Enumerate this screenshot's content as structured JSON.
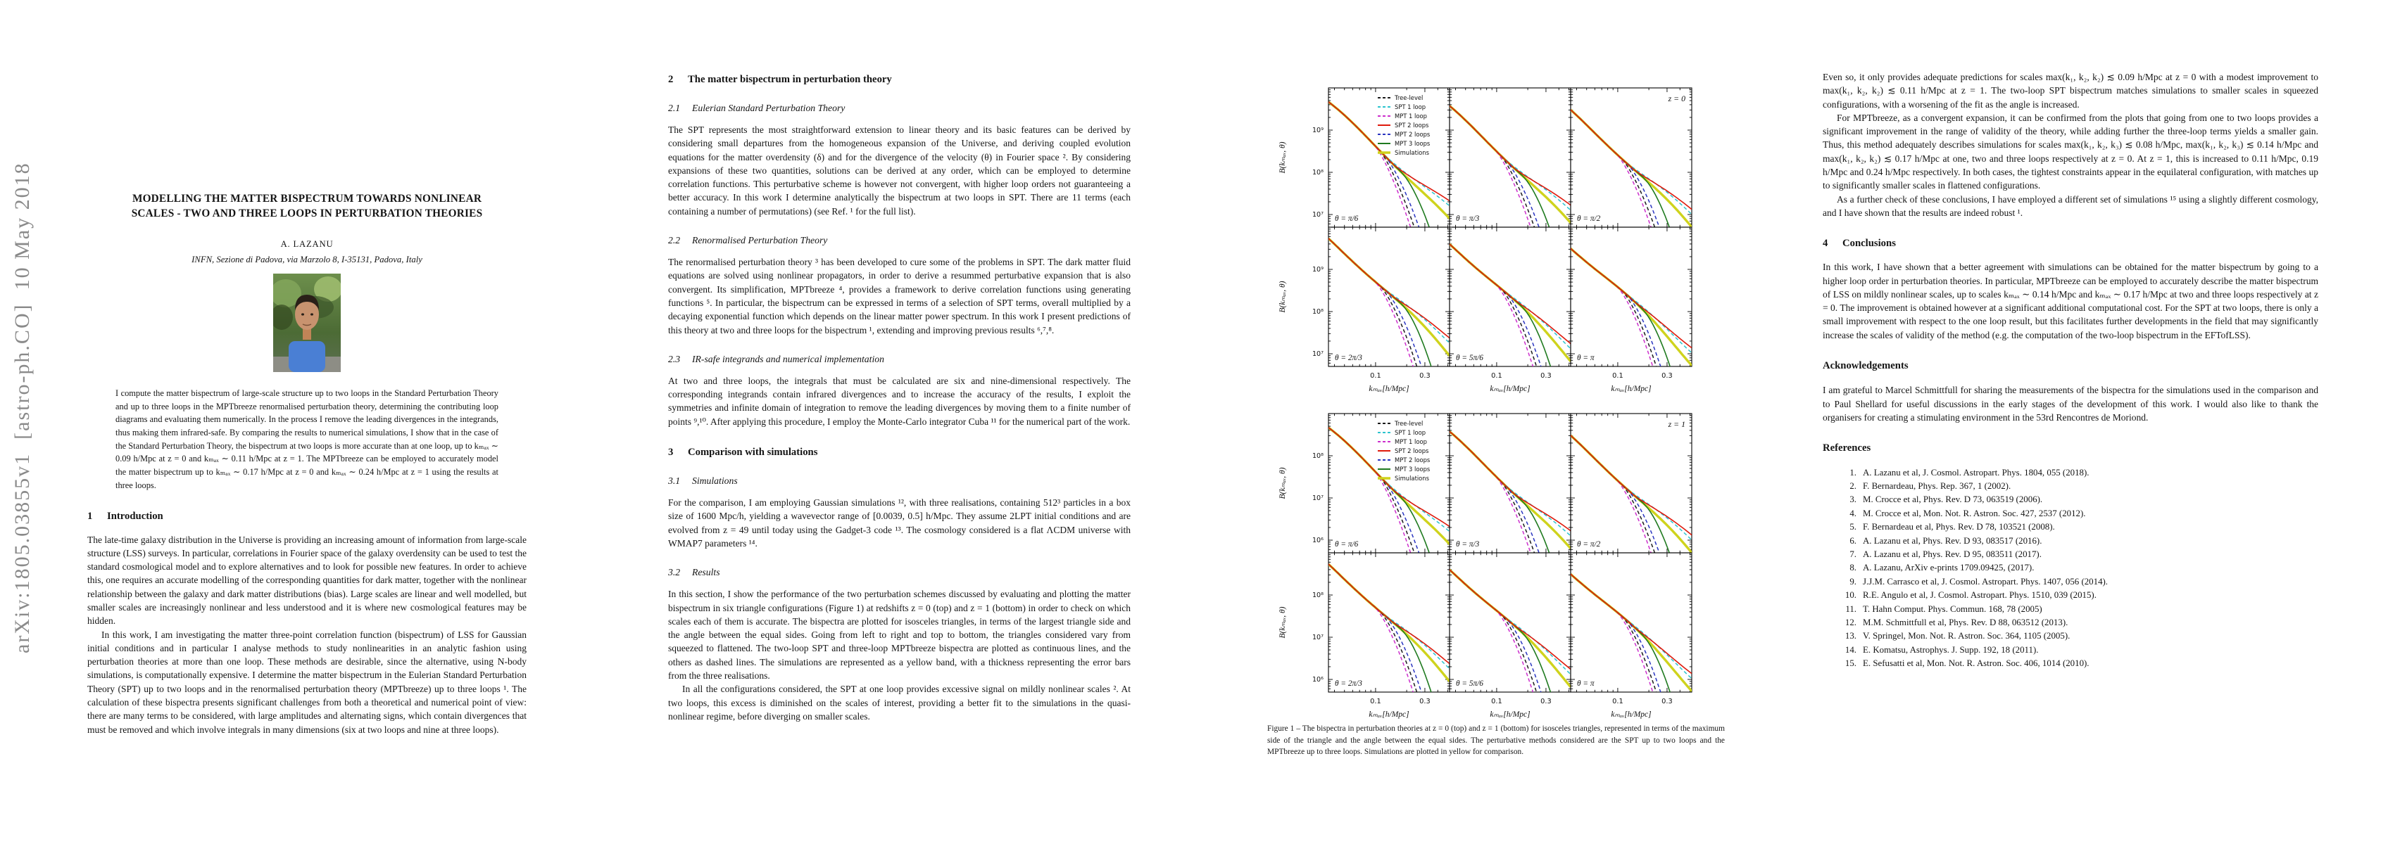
{
  "sidebar_text": "arXiv:1805.03855v1  [astro-ph.CO]  10 May 2018",
  "col1": {
    "title_lines": [
      "MODELLING THE MATTER BISPECTRUM TOWARDS NONLINEAR",
      "SCALES - TWO AND THREE LOOPS IN PERTURBATION THEORIES"
    ],
    "author": "A. LAZANU",
    "affiliation": "INFN, Sezione di Padova, via Marzolo 8, I-35131, Padova, Italy",
    "abstract": "I compute the matter bispectrum of large-scale structure up to two loops in the Standard Perturbation Theory and up to three loops in the MPTbreeze renormalised perturbation theory, determining the contributing loop diagrams and evaluating them numerically. In the process I remove the leading divergences in the integrands, thus making them infrared-safe. By comparing the results to numerical simulations, I show that in the case of the Standard Perturbation Theory, the bispectrum at two loops is more accurate than at one loop, up to kₘₐₓ ∼ 0.09 h/Mpc at z = 0 and kₘₐₓ ∼ 0.11 h/Mpc at z = 1. The MPTbreeze can be employed to accurately model the matter bispectrum up to kₘₐₓ ∼ 0.17 h/Mpc at z = 0 and kₘₐₓ ∼ 0.24 h/Mpc at z = 1 using the results at three loops.",
    "intro_heading": {
      "num": "1",
      "title": "Introduction"
    },
    "intro_p1": "The late-time galaxy distribution in the Universe is providing an increasing amount of information from large-scale structure (LSS) surveys. In particular, correlations in Fourier space of the galaxy overdensity can be used to test the standard cosmological model and to explore alternatives and to look for possible new features. In order to achieve this, one requires an accurate modelling of the corresponding quantities for dark matter, together with the nonlinear relationship between the galaxy and dark matter distributions (bias). Large scales are linear and well modelled, but smaller scales are increasingly nonlinear and less understood and it is where new cosmological features may be hidden.",
    "intro_p2": "In this work, I am investigating the matter three-point correlation function (bispectrum) of LSS for Gaussian initial conditions and in particular I analyse methods to study nonlinearities in an analytic fashion using perturbation theories at more than one loop. These methods are desirable, since the alternative, using N-body simulations, is computationally expensive. I determine the matter bispectrum in the Eulerian Standard Perturbation Theory (SPT) up to two loops and in the renormalised perturbation theory (MPTbreeze) up to three loops ¹. The calculation of these bispectra presents significant challenges from both a theoretical and numerical point of view: there are many terms to be considered, with large amplitudes and alternating signs, which contain divergences that must be removed and which involve integrals in many dimensions (six at two loops and nine at three loops)."
  },
  "col2": {
    "sec2": {
      "num": "2",
      "title": "The matter bispectrum in perturbation theory"
    },
    "sec21": {
      "num": "2.1",
      "title": "Eulerian Standard Perturbation Theory"
    },
    "s21_text": "The SPT represents the most straightforward extension to linear theory and its basic features can be derived by considering small departures from the homogeneous expansion of the Universe, and deriving coupled evolution equations for the matter overdensity (δ) and for the divergence of the velocity (θ) in Fourier space ². By considering expansions of these two quantities, solutions can be derived at any order, which can be employed to determine correlation functions. This perturbative scheme is however not convergent, with higher loop orders not guaranteeing a better accuracy. In this work I determine analytically the bispectrum at two loops in SPT. There are 11 terms (each containing a number of permutations) (see Ref. ¹ for the full list).",
    "sec22": {
      "num": "2.2",
      "title": "Renormalised Perturbation Theory"
    },
    "s22_text": "The renormalised perturbation theory ³ has been developed to cure some of the problems in SPT. The dark matter fluid equations are solved using nonlinear propagators, in order to derive a resummed perturbative expansion that is also convergent. Its simplification, MPTbreeze ⁴, provides a framework to derive correlation functions using generating functions ⁵. In particular, the bispectrum can be expressed in terms of a selection of SPT terms, overall multiplied by a decaying exponential function which depends on the linear matter power spectrum. In this work I present predictions of this theory at two and three loops for the bispectrum ¹, extending and improving previous results ⁶,⁷,⁸.",
    "sec23": {
      "num": "2.3",
      "title": "IR-safe integrands and numerical implementation"
    },
    "s23_text": "At two and three loops, the integrals that must be calculated are six and nine-dimensional respectively. The corresponding integrands contain infrared divergences and to increase the accuracy of the results, I exploit the symmetries and infinite domain of integration to remove the leading divergences by moving them to a finite number of points ⁹,¹⁰. After applying this procedure, I employ the Monte-Carlo integrator Cuba ¹¹ for the numerical part of the work.",
    "sec3": {
      "num": "3",
      "title": "Comparison with simulations"
    },
    "sec31": {
      "num": "3.1",
      "title": "Simulations"
    },
    "s31_text": "For the comparison, I am employing Gaussian simulations ¹², with three realisations, containing 512³ particles in a box size of 1600 Mpc/h, yielding a wavevector range of [0.0039, 0.5] h/Mpc. They assume 2LPT initial conditions and are evolved from z = 49 until today using the Gadget-3 code ¹³. The cosmology considered is a flat ΛCDM universe with WMAP7 parameters ¹⁴.",
    "sec32": {
      "num": "3.2",
      "title": "Results"
    },
    "s32_p1": "In this section, I show the performance of the two perturbation schemes discussed by evaluating and plotting the matter bispectrum in six triangle configurations (Figure 1) at redshifts z = 0 (top) and z = 1 (bottom) in order to check on which scales each of them is accurate. The bispectra are plotted for isosceles triangles, in terms of the largest triangle side and the angle between the equal sides. Going from left to right and top to bottom, the triangles considered vary from squeezed to flattened. The two-loop SPT and three-loop MPTbreeze bispectra are plotted as continuous lines, and the others as dashed lines. The simulations are represented as a yellow band, with a thickness representing the error bars from the three realisations.",
    "s32_p2": "In all the configurations considered, the SPT at one loop provides excessive signal on mildly nonlinear scales ². At two loops, this excess is diminished on the scales of interest, providing a better fit to the simulations in the quasi-nonlinear regime, before diverging on smaller scales."
  },
  "col3": {
    "p1": "Even so, it only provides adequate predictions for scales max(k₁, k₂, k₂) ≲ 0.09 h/Mpc at z = 0 with a modest improvement to max(k₁, k₂, k₂) ≲ 0.11 h/Mpc at z = 1. The two-loop SPT bispectrum matches simulations to smaller scales in squeezed configurations, with a worsening of the fit as the angle is increased.",
    "p2": "For MPTbreeze, as a convergent expansion, it can be confirmed from the plots that going from one to two loops provides a significant improvement in the range of validity of the theory, while adding further the three-loop terms yields a smaller gain. Thus, this method adequately describes simulations for scales max(k₁, k₂, k₃) ≲ 0.08 h/Mpc, max(k₁, k₂, k₃) ≲ 0.14 h/Mpc and max(k₁, k₂, k₂) ≲ 0.17 h/Mpc at one, two and three loops respectively at z = 0. At z = 1, this is increased to 0.11 h/Mpc, 0.19 h/Mpc and 0.24 h/Mpc respectively. In both cases, the tightest constraints appear in the equilateral configuration, with matches up to significantly smaller scales in flattened configurations.",
    "p3": "As a further check of these conclusions, I have employed a different set of simulations ¹⁵ using a slightly different cosmology, and I have shown that the results are indeed robust ¹.",
    "sec4": {
      "num": "4",
      "title": "Conclusions"
    },
    "conclusions": "In this work, I have shown that a better agreement with simulations can be obtained for the matter bispectrum by going to a higher loop order in perturbation theories. In particular, MPTbreeze can be employed to accurately describe the matter bispectrum of LSS on mildly nonlinear scales, up to scales kₘₐₓ ∼ 0.14 h/Mpc and kₘₐₓ ∼ 0.17 h/Mpc at two and three loops respectively at z = 0. The improvement is obtained however at a significant additional computational cost. For the SPT at two loops, there is only a small improvement with respect to the one loop result, but this facilitates further developments in the field that may significantly increase the scales of validity of the method (e.g. the computation of the two-loop bispectrum in the EFTofLSS).",
    "ack_heading": "Acknowledgements",
    "ack_text": "I am grateful to Marcel Schmittfull for sharing the measurements of the bispectra for the simulations used in the comparison and to Paul Shellard for useful discussions in the early stages of the development of this work. I would also like to thank the organisers for creating a stimulating environment in the 53rd Rencontres de Moriond.",
    "ref_heading": "References",
    "references": [
      {
        "n": "1.",
        "t": "A. Lazanu et al, J. Cosmol. Astropart. Phys. 1804, 055 (2018)."
      },
      {
        "n": "2.",
        "t": "F. Bernardeau, Phys. Rep. 367, 1 (2002)."
      },
      {
        "n": "3.",
        "t": "M. Crocce et al, Phys. Rev. D 73, 063519 (2006)."
      },
      {
        "n": "4.",
        "t": "M. Crocce et al, Mon. Not. R. Astron. Soc. 427, 2537 (2012)."
      },
      {
        "n": "5.",
        "t": "F. Bernardeau et al, Phys. Rev. D 78, 103521 (2008)."
      },
      {
        "n": "6.",
        "t": "A. Lazanu et al, Phys. Rev. D 93, 083517 (2016)."
      },
      {
        "n": "7.",
        "t": "A. Lazanu et al, Phys. Rev. D 95, 083511 (2017)."
      },
      {
        "n": "8.",
        "t": "A. Lazanu, ArXiv e-prints 1709.09425, (2017)."
      },
      {
        "n": "9.",
        "t": "J.J.M. Carrasco et al, J. Cosmol. Astropart. Phys. 1407, 056 (2014)."
      },
      {
        "n": "10.",
        "t": "R.E. Angulo et al, J. Cosmol. Astropart. Phys. 1510, 039 (2015)."
      },
      {
        "n": "11.",
        "t": "T. Hahn Comput. Phys. Commun. 168, 78 (2005)"
      },
      {
        "n": "12.",
        "t": "M.M. Schmittfull et al, Phys. Rev. D 88, 063512 (2013)."
      },
      {
        "n": "13.",
        "t": "V. Springel, Mon. Not. R. Astron. Soc. 364, 1105 (2005)."
      },
      {
        "n": "14.",
        "t": "E. Komatsu, Astrophys. J. Supp. 192, 18 (2011)."
      },
      {
        "n": "15.",
        "t": "E. Sefusatti et al, Mon. Not. R. Astron. Soc. 406, 1014 (2010)."
      }
    ]
  },
  "figure": {
    "caption": "Figure 1 – The bispectra in perturbation theories at z = 0 (top) and z = 1 (bottom) for isosceles triangles, represented in terms of the maximum side of the triangle and the angle between the equal sides. The perturbative methods considered are the SPT up to two loops and the MPTbreeze up to three loops. Simulations are plotted in yellow for comparison.",
    "chart_data": {
      "type": "line",
      "x_axis": {
        "label": "kₘₐₓ[h/Mpc]",
        "scale": "log",
        "min": 0.035,
        "max": 0.52,
        "major_ticks": [
          0.1,
          0.3
        ],
        "minor_ticks": [
          0.04,
          0.05,
          0.06,
          0.07,
          0.08,
          0.09,
          0.2,
          0.4,
          0.5
        ],
        "tick_labels": [
          "0.1",
          "0.3"
        ]
      },
      "ylabel": "B(kₘₐₓ, θ)",
      "groups": [
        {
          "z_label": "z = 0",
          "y_exp_max": 10.0,
          "y_exp_span": 3.3,
          "start_exp": 9.62,
          "ytick_exps": [
            9,
            8,
            7
          ],
          "ytick_labels": [
            "10⁹",
            "10⁸",
            "10⁷"
          ],
          "panels": [
            {
              "theta": "θ = π/6"
            },
            {
              "theta": "θ = π/3"
            },
            {
              "theta": "θ = π/2"
            },
            {
              "theta": "θ = 2π/3"
            },
            {
              "theta": "θ = 5π/6"
            },
            {
              "theta": "θ = π"
            }
          ]
        },
        {
          "z_label": "z = 1",
          "y_exp_max": 9.0,
          "y_exp_span": 3.3,
          "start_exp": 8.62,
          "ytick_exps": [
            8,
            7,
            6
          ],
          "ytick_labels": [
            "10⁸",
            "10⁷",
            "10⁶"
          ],
          "panels": [
            {
              "theta": "θ = π/6"
            },
            {
              "theta": "θ = π/3"
            },
            {
              "theta": "θ = π/2"
            },
            {
              "theta": "θ = 2π/3"
            },
            {
              "theta": "θ = 5π/6"
            },
            {
              "theta": "θ = π"
            }
          ]
        }
      ],
      "series": [
        {
          "name": "Tree-level",
          "color": "#1c1c1c",
          "dash": "5 3.5",
          "width": 1.5,
          "t0": 0.42,
          "drop": 7.4,
          "p": 1.6
        },
        {
          "name": "SPT 1 loop",
          "color": "#2cc4ce",
          "dash": "5 3.5",
          "width": 1.5,
          "lt0": 0.42,
          "lift": 0.3
        },
        {
          "name": "MPT 1 loop",
          "color": "#cd2fcd",
          "dash": "5 3.5",
          "width": 1.5,
          "t0": 0.38,
          "drop": 7.6,
          "p": 1.6
        },
        {
          "name": "SPT 2 loops",
          "color": "#df1a0c",
          "dash": null,
          "width": 1.6,
          "lt0": 0.52,
          "lift": 0.42
        },
        {
          "name": "MPT 2 loops",
          "color": "#2a35c0",
          "dash": "5 3.5",
          "width": 1.5,
          "t0": 0.46,
          "drop": 7.6,
          "p": 1.7
        },
        {
          "name": "MPT 3 loops",
          "color": "#1f7a1f",
          "dash": null,
          "width": 1.6,
          "t0": 0.6,
          "drop": 9.5,
          "p": 1.8
        },
        {
          "name": "Simulations",
          "color": "#cfd31d",
          "dash": null,
          "width": 3.4
        }
      ],
      "panel_offsets": [
        0,
        -0.1,
        -0.18,
        0.1,
        0,
        -0.08
      ],
      "legend_position": "upper center of first panel of each group"
    }
  }
}
